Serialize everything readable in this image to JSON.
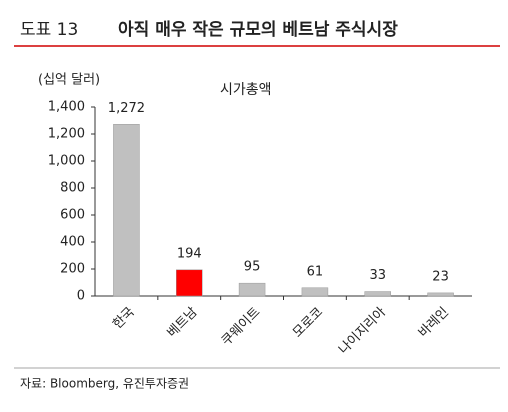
{
  "header": {
    "label": "도표 13",
    "title": "아직 매우 작은 규모의 베트남 주식시장"
  },
  "chart_data": {
    "type": "bar",
    "title": "시가총액",
    "y_unit": "(십억 달러)",
    "categories": [
      "한국",
      "베트남",
      "쿠웨이트",
      "모로코",
      "나이지리아",
      "바레인"
    ],
    "values": [
      1272,
      194,
      95,
      61,
      33,
      23
    ],
    "value_labels": [
      "1,272",
      "194",
      "95",
      "61",
      "33",
      "23"
    ],
    "colors": [
      "#c0c0c0",
      "#ff0000",
      "#c0c0c0",
      "#c0c0c0",
      "#c0c0c0",
      "#c0c0c0"
    ],
    "ylim": [
      0,
      1400
    ],
    "yticks": [
      0,
      200,
      400,
      600,
      800,
      {
        "value": 1000,
        "label": "1,000"
      },
      {
        "value": 1200,
        "label": "1,200"
      },
      {
        "value": 1400,
        "label": "1,400"
      }
    ]
  },
  "footer": {
    "source": "자료: Bloomberg, 유진투자증권"
  }
}
